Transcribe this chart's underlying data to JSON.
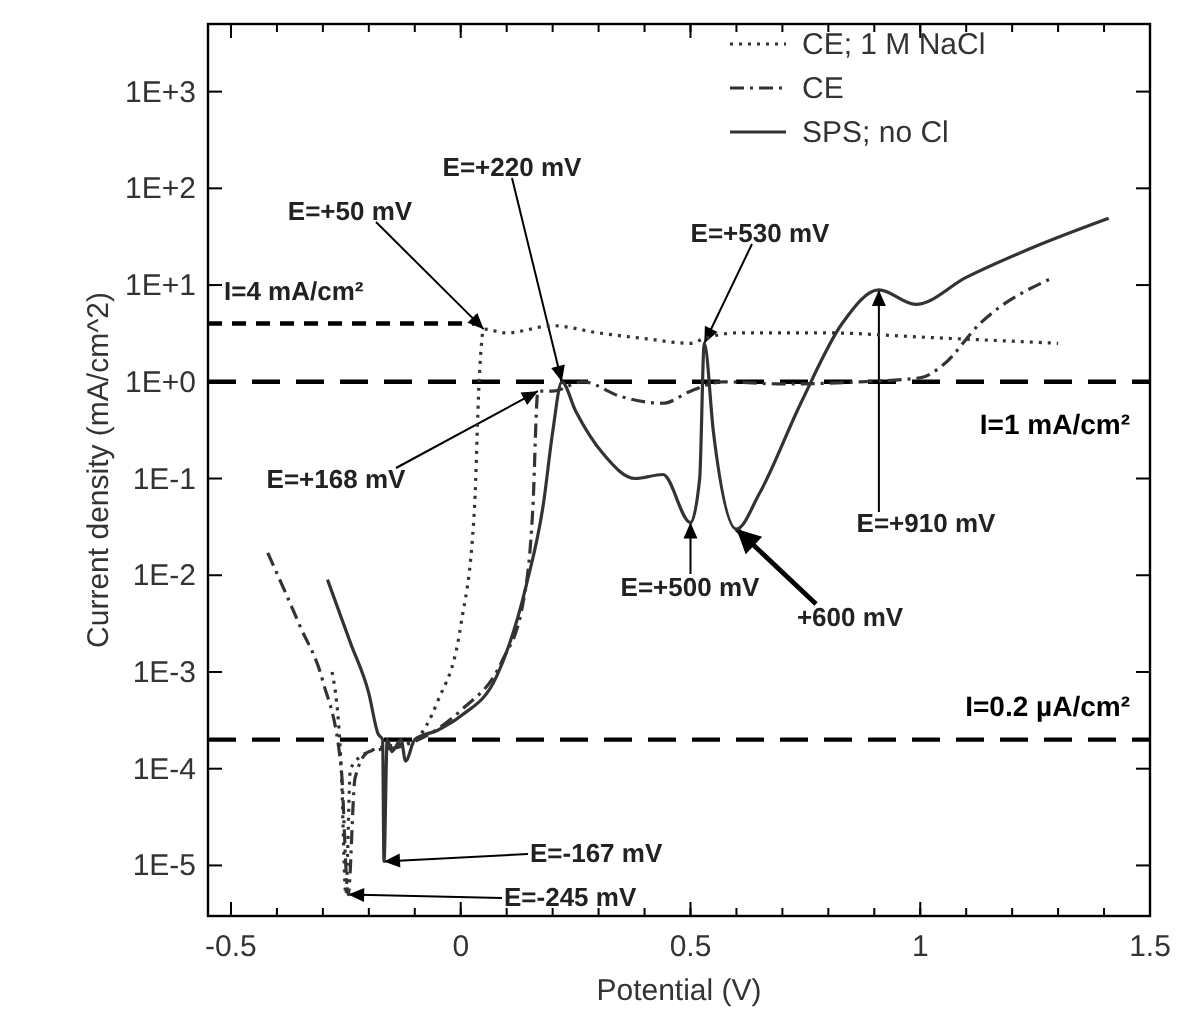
{
  "chart_data": {
    "type": "line",
    "xlabel": "Potential (V)",
    "ylabel": "Current density (mA/cm^2)",
    "log": "y",
    "grid": false,
    "legend": "top right",
    "xlim": [
      -0.55,
      1.5
    ],
    "xticks": [
      -0.5,
      0,
      0.5,
      1,
      1.5
    ],
    "ylim": [
      3e-06,
      5000
    ],
    "yticks": [
      {
        "value": 1e-05,
        "label": "1E-5"
      },
      {
        "value": 0.0001,
        "label": "1E-4"
      },
      {
        "value": 0.001,
        "label": "1E-3"
      },
      {
        "value": 0.01,
        "label": "1E-2"
      },
      {
        "value": 0.1,
        "label": "1E-1"
      },
      {
        "value": 1,
        "label": "1E+0"
      },
      {
        "value": 10,
        "label": "1E+1"
      },
      {
        "value": 100,
        "label": "1E+2"
      },
      {
        "value": 1000,
        "label": "1E+3"
      }
    ],
    "series": [
      {
        "name": "CE; 1 M NaCl",
        "color": "#333333",
        "line_style": "dotted",
        "x": [
          -0.28,
          -0.26,
          -0.25,
          -0.24,
          -0.2,
          -0.1,
          -0.05,
          0,
          0.03,
          0.04,
          0.05,
          0.1,
          0.2,
          0.3,
          0.4,
          0.5,
          0.53,
          0.6,
          0.8,
          1.0,
          1.3
        ],
        "values": [
          0.001,
          0.0001,
          5e-06,
          0.0001,
          0.00015,
          0.0002,
          0.0005,
          0.003,
          0.05,
          1,
          3.5,
          3.2,
          3.8,
          3.2,
          2.8,
          2.5,
          2.8,
          3.2,
          3.2,
          2.9,
          2.5
        ]
      },
      {
        "name": "CE",
        "color": "#333333",
        "line_style": "dashdot",
        "x": [
          -0.42,
          -0.35,
          -0.3,
          -0.26,
          -0.245,
          -0.23,
          -0.2,
          -0.13,
          0,
          0.09,
          0.135,
          0.157,
          0.168,
          0.2,
          0.265,
          0.35,
          0.44,
          0.5,
          0.57,
          0.7,
          0.87,
          1.0,
          1.05,
          1.13,
          1.29
        ],
        "values": [
          0.017,
          0.003,
          0.0008,
          0.0001,
          5e-06,
          8e-05,
          0.00015,
          0.00017,
          0.0004,
          0.0013,
          0.005,
          0.05,
          0.8,
          0.8,
          1,
          0.7,
          0.6,
          0.8,
          1,
          0.95,
          1,
          1.1,
          1.5,
          4,
          12
        ]
      },
      {
        "name": "SPS; no Cl",
        "color": "#333333",
        "line_style": "solid",
        "x": [
          -0.29,
          -0.24,
          -0.2,
          -0.18,
          -0.17,
          -0.167,
          -0.16,
          -0.15,
          -0.13,
          -0.12,
          -0.1,
          -0.05,
          0,
          0.078,
          0.143,
          0.18,
          0.2,
          0.22,
          0.25,
          0.31,
          0.38,
          0.44,
          0.5,
          0.52,
          0.53,
          0.55,
          0.6,
          0.65,
          0.74,
          0.83,
          0.91,
          0.99,
          1.1,
          1.25,
          1.41
        ],
        "values": [
          0.009,
          0.002,
          0.0006,
          0.00023,
          0.0002,
          1.1e-05,
          0.0002,
          0.00015,
          0.0002,
          0.00012,
          0.0002,
          0.00025,
          0.00035,
          0.0009,
          0.008,
          0.055,
          0.3,
          1,
          0.5,
          0.18,
          0.1,
          0.11,
          0.035,
          0.1,
          2.5,
          0.3,
          0.03,
          0.07,
          0.6,
          4,
          8.9,
          6.3,
          12,
          25,
          49
        ]
      },
      {
        "color": "#000000",
        "line_style": "dashed",
        "x": [
          -0.55,
          0.03
        ],
        "values": [
          4,
          4
        ]
      }
    ],
    "ref_lines": [
      {
        "axis": "y",
        "value": 1,
        "label": "I=1 mA/cm²",
        "color": "#000000",
        "line_style": "dashed"
      },
      {
        "axis": "y",
        "value": 0.0002,
        "label": "I=0.2 µA/cm²",
        "color": "#000000",
        "line_style": "dashed"
      }
    ],
    "annotations": [
      {
        "text": "I=4 mA/cm²",
        "x": -0.3,
        "y": 4
      },
      {
        "text": "E=+50 mV",
        "x": 0.05,
        "y": 3.5
      },
      {
        "text": "E=+220 mV",
        "x": 0.22,
        "y": 1
      },
      {
        "text": "E=+530 mV",
        "x": 0.53,
        "y": 2.5
      },
      {
        "text": "E=+168 mV",
        "x": 0.168,
        "y": 0.8
      },
      {
        "text": "E=+500 mV",
        "x": 0.5,
        "y": 0.035
      },
      {
        "text": "+600 mV",
        "x": 0.6,
        "y": 0.03
      },
      {
        "text": "E=+910 mV",
        "x": 0.91,
        "y": 8.9
      },
      {
        "text": "E=-167 mV",
        "x": -0.167,
        "y": 1.1e-05
      },
      {
        "text": "E=-245 mV",
        "x": -0.245,
        "y": 5e-06
      }
    ]
  }
}
